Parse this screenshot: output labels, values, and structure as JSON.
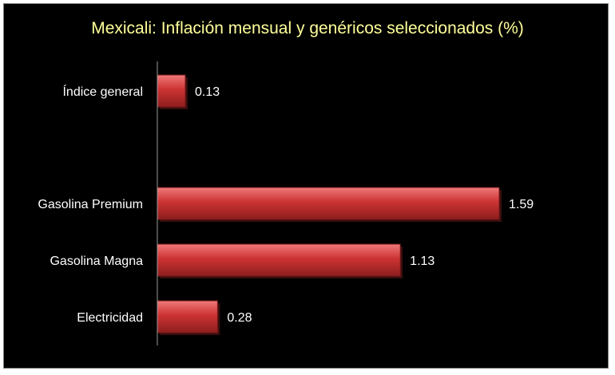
{
  "chart_data": {
    "type": "bar",
    "orientation": "horizontal",
    "title": "Mexicali: Inflación mensual y genéricos seleccionados (%)",
    "categories": [
      "Índice general",
      "",
      "Gasolina Premium",
      "Gasolina Magna",
      "Electricidad"
    ],
    "values": [
      0.13,
      null,
      1.59,
      1.13,
      0.28
    ],
    "data_labels": [
      "0.13",
      "",
      "1.59",
      "1.13",
      "0.28"
    ],
    "xlim": [
      0,
      1.59
    ],
    "grid": false,
    "legend": "none",
    "colors": {
      "background": "#000000",
      "bar": "#cc3333",
      "title": "#ffff99",
      "text": "#ffffff",
      "axis": "#9a9a9a"
    }
  }
}
